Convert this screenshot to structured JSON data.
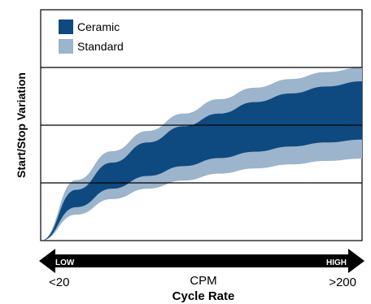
{
  "chart_data": {
    "type": "area",
    "ylabel": "Start/Stop Variation",
    "xlabel": "Cycle Rate",
    "x_unit_label": "CPM",
    "x_tick_left": "<20",
    "x_tick_right": ">200",
    "arrow_label_left": "LOW",
    "arrow_label_right": "HIGH",
    "grid": true,
    "legend_position": "top-left",
    "x": [
      20,
      40,
      60,
      80,
      100,
      120,
      140,
      160,
      180,
      200
    ],
    "series": [
      {
        "name": "Standard",
        "color": "#9cb4cc",
        "upper": [
          0.0,
          1.05,
          1.55,
          1.9,
          2.2,
          2.45,
          2.65,
          2.8,
          2.92,
          3.0
        ],
        "lower": [
          0.0,
          0.45,
          0.72,
          0.9,
          1.04,
          1.16,
          1.25,
          1.32,
          1.38,
          1.42
        ]
      },
      {
        "name": "Ceramic",
        "color": "#0e4a7f",
        "upper": [
          0.0,
          0.88,
          1.35,
          1.7,
          1.98,
          2.2,
          2.4,
          2.55,
          2.67,
          2.76
        ],
        "lower": [
          0.0,
          0.58,
          0.9,
          1.12,
          1.29,
          1.43,
          1.54,
          1.63,
          1.7,
          1.75
        ]
      }
    ],
    "ylim": [
      0,
      4
    ],
    "gridlines_y": [
      1,
      2,
      3
    ]
  },
  "colors": {
    "standard": "#9cb4cc",
    "ceramic": "#0e4a7f",
    "arrow": "#000000",
    "arrow_text": "#ffffff"
  }
}
